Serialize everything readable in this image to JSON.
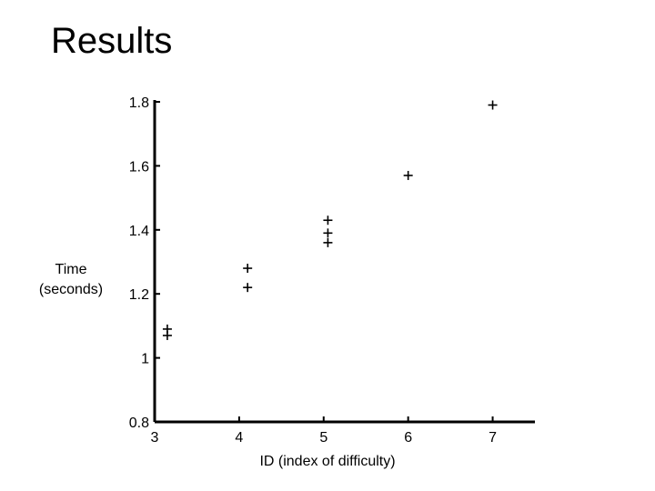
{
  "slide": {
    "title": "Results"
  },
  "chart_data": {
    "type": "scatter",
    "title": "",
    "xlabel": "ID (index of difficulty)",
    "ylabel_lines": [
      "Time",
      "(seconds)"
    ],
    "xlim": [
      3,
      7.5
    ],
    "ylim": [
      0.8,
      1.8
    ],
    "xticks": [
      3,
      4,
      5,
      6,
      7
    ],
    "yticks": [
      0.8,
      1.0,
      1.2,
      1.4,
      1.6,
      1.8
    ],
    "ytick_labels": [
      "0.8",
      "1",
      "1.2",
      "1.4",
      "1.6",
      "1.8"
    ],
    "grid": false,
    "marker": "+",
    "series": [
      {
        "points": [
          {
            "x": 3.15,
            "y": 1.09
          },
          {
            "x": 3.15,
            "y": 1.07
          },
          {
            "x": 4.1,
            "y": 1.28
          },
          {
            "x": 4.1,
            "y": 1.22
          },
          {
            "x": 5.05,
            "y": 1.43
          },
          {
            "x": 5.05,
            "y": 1.39
          },
          {
            "x": 5.05,
            "y": 1.36
          },
          {
            "x": 6.0,
            "y": 1.57
          },
          {
            "x": 7.0,
            "y": 1.79
          }
        ]
      }
    ]
  }
}
